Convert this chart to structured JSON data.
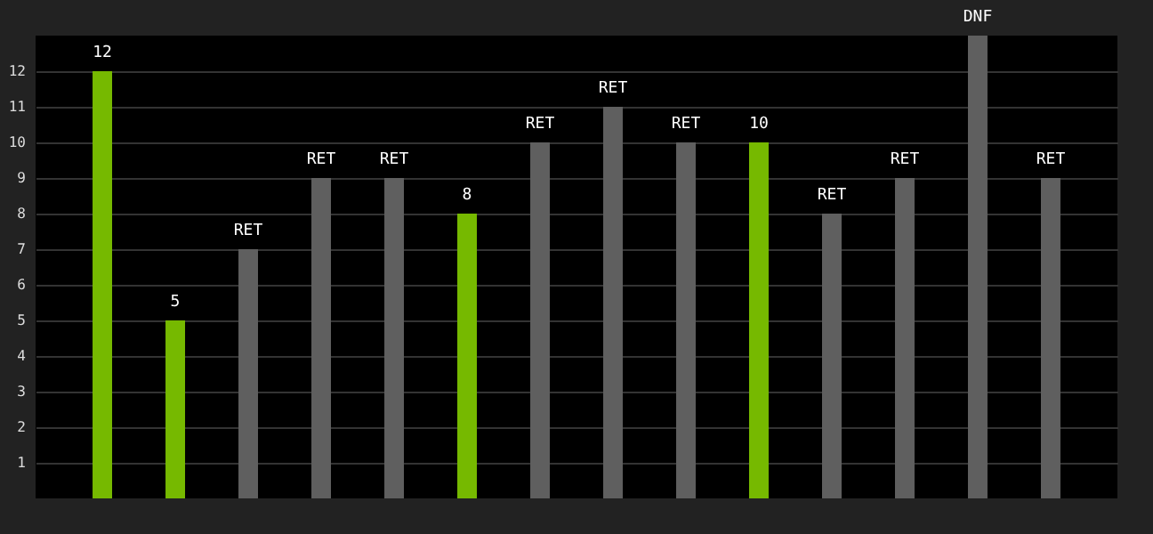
{
  "chart_data": {
    "type": "bar",
    "categories": [
      null,
      null,
      null,
      null,
      null,
      null,
      null,
      null,
      null,
      null,
      null,
      null,
      null,
      null
    ],
    "values": [
      12,
      5,
      7,
      9,
      9,
      8,
      10,
      11,
      10,
      10,
      8,
      9,
      13,
      9
    ],
    "colors": [
      "#76b900",
      "#76b900",
      "#5f5f5f",
      "#5f5f5f",
      "#5f5f5f",
      "#76b900",
      "#5f5f5f",
      "#5f5f5f",
      "#5f5f5f",
      "#76b900",
      "#5f5f5f",
      "#5f5f5f",
      "#5f5f5f",
      "#5f5f5f"
    ],
    "value_labels": [
      "12",
      "5",
      "RET",
      "RET",
      "RET",
      "8",
      "RET",
      "RET",
      "RET",
      "10",
      "RET",
      "RET",
      "DNF",
      "RET"
    ],
    "ylim": [
      0,
      13
    ],
    "yticks": [
      1,
      2,
      3,
      4,
      5,
      6,
      7,
      8,
      9,
      10,
      11,
      12
    ],
    "grid": "y"
  }
}
